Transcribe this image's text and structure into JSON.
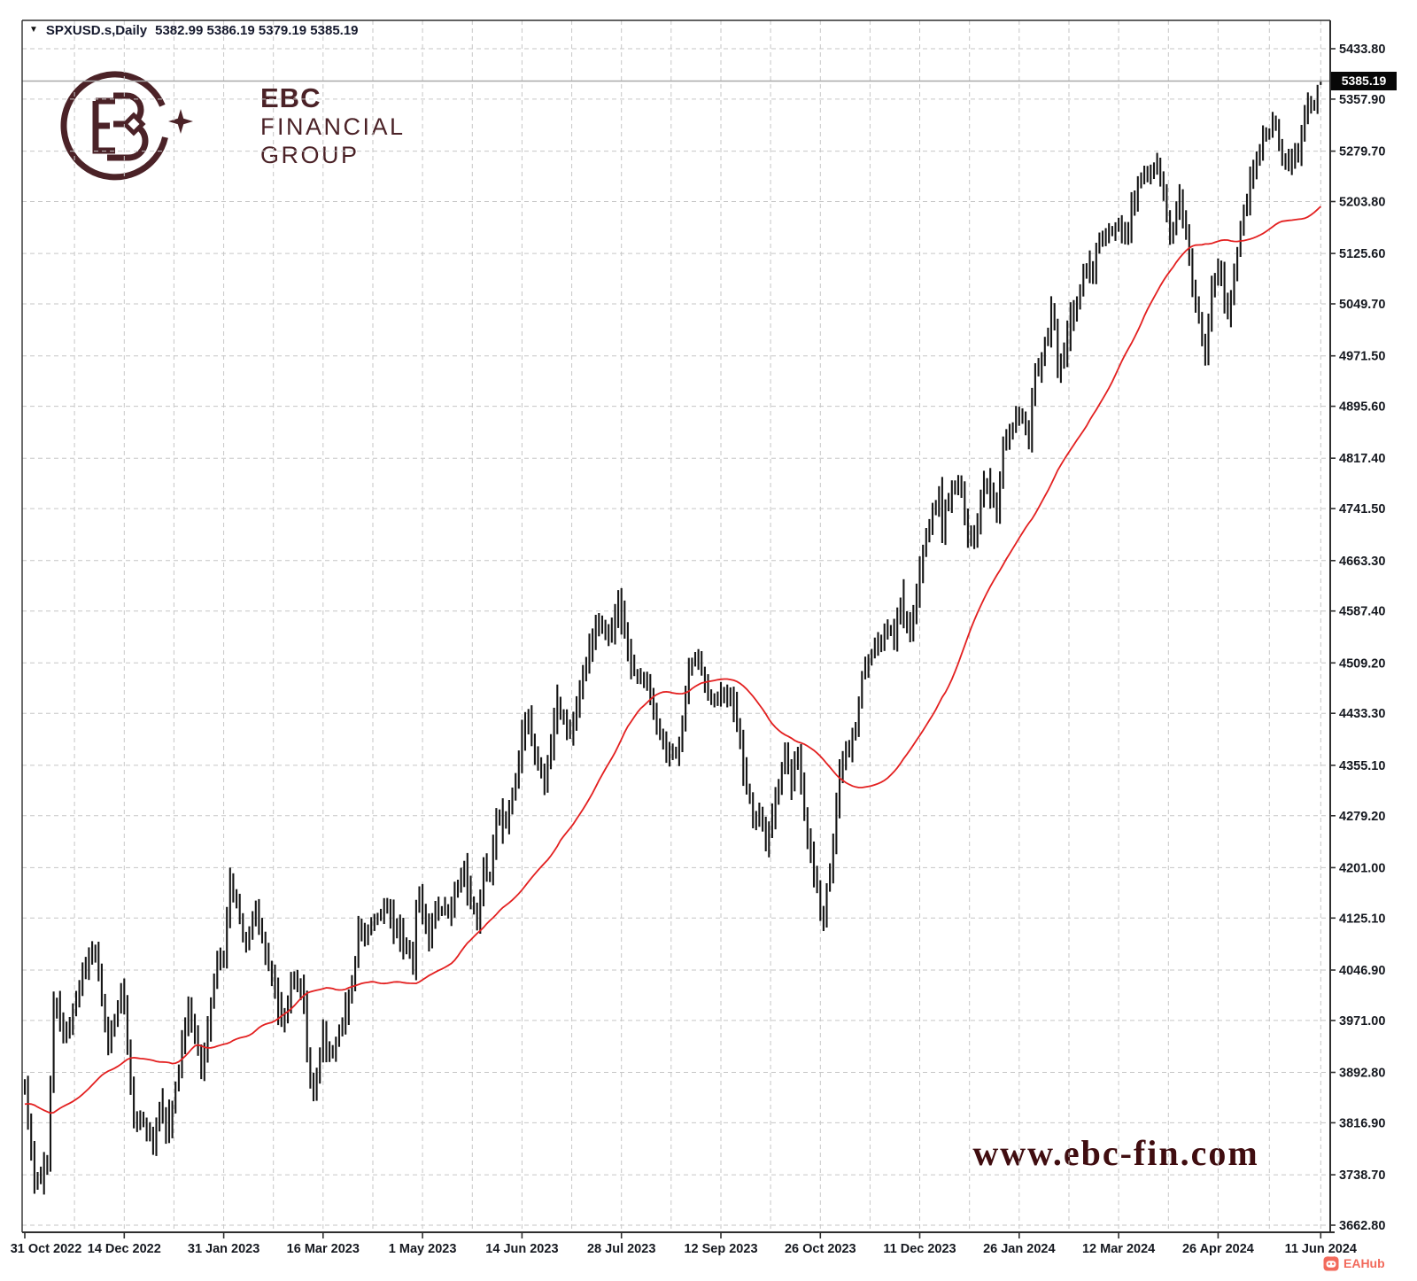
{
  "window": {
    "symbol_period": "SPXUSD.s,Daily",
    "ohlc_text": "5382.99 5386.19 5379.19 5385.19"
  },
  "logo": {
    "line1": "EBC",
    "line2": "FINANCIAL",
    "line3": "GROUP",
    "color": "#4b2227"
  },
  "watermark": {
    "text": "www.ebc-fin.com"
  },
  "eahub_badge": {
    "text": "EAHub",
    "color": "#f26a5c"
  },
  "chart_data": {
    "type": "bar",
    "subtype": "ohlc-daily-bars",
    "title": "SPXUSD.s Daily",
    "current_price": 5385.19,
    "current_price_label": "5385.19",
    "ohlc_title": {
      "open": 5382.99,
      "high": 5386.19,
      "low": 5379.19,
      "close": 5385.19
    },
    "ylim": [
      3662.8,
      5433.8
    ],
    "grid": true,
    "price_axis_ticks": [
      5433.8,
      5357.9,
      5279.7,
      5203.8,
      5125.6,
      5049.7,
      4971.5,
      4895.6,
      4817.4,
      4741.5,
      4663.3,
      4587.4,
      4509.2,
      4433.3,
      4355.1,
      4279.2,
      4201.0,
      4125.1,
      4046.9,
      3971.0,
      3892.8,
      3816.9,
      3738.7,
      3662.8
    ],
    "date_axis_ticks": [
      "31 Oct 2022",
      "14 Dec 2022",
      "31 Jan 2023",
      "16 Mar 2023",
      "1 May 2023",
      "14 Jun 2023",
      "28 Jul 2023",
      "12 Sep 2023",
      "26 Oct 2023",
      "11 Dec 2023",
      "26 Jan 2024",
      "12 Mar 2024",
      "26 Apr 2024",
      "11 Jun 2024"
    ],
    "date_tick_days": [
      0,
      31,
      62,
      93,
      124,
      155,
      186,
      217,
      248,
      279,
      310,
      341,
      372,
      404
    ],
    "total_days": 405,
    "close_anchors": [
      [
        0,
        3872
      ],
      [
        3,
        3720
      ],
      [
        7,
        3748
      ],
      [
        9,
        3993
      ],
      [
        13,
        3947
      ],
      [
        17,
        4027
      ],
      [
        21,
        4080
      ],
      [
        22,
        4077
      ],
      [
        26,
        3934
      ],
      [
        30,
        4020
      ],
      [
        31,
        3995
      ],
      [
        34,
        3818
      ],
      [
        37,
        3822
      ],
      [
        40,
        3783
      ],
      [
        42,
        3840
      ],
      [
        45,
        3808
      ],
      [
        51,
        3999
      ],
      [
        55,
        3898
      ],
      [
        60,
        4060
      ],
      [
        62,
        4070
      ],
      [
        64,
        4180
      ],
      [
        69,
        4082
      ],
      [
        72,
        4137
      ],
      [
        75,
        4079
      ],
      [
        80,
        3970
      ],
      [
        81,
        3970
      ],
      [
        84,
        4045
      ],
      [
        87,
        3992
      ],
      [
        88,
        3918
      ],
      [
        90,
        3856
      ],
      [
        93,
        3960
      ],
      [
        94,
        3917
      ],
      [
        97,
        3937
      ],
      [
        99,
        3971
      ],
      [
        102,
        4028
      ],
      [
        104,
        4109
      ],
      [
        106,
        4100
      ],
      [
        112,
        4146
      ],
      [
        120,
        4071
      ],
      [
        121,
        4055
      ],
      [
        122,
        4135
      ],
      [
        123,
        4169
      ],
      [
        126,
        4091
      ],
      [
        128,
        4136
      ],
      [
        132,
        4131
      ],
      [
        137,
        4198
      ],
      [
        141,
        4115
      ],
      [
        143,
        4205
      ],
      [
        145,
        4180
      ],
      [
        147,
        4282
      ],
      [
        150,
        4268
      ],
      [
        154,
        4369
      ],
      [
        156,
        4426
      ],
      [
        157,
        4410
      ],
      [
        161,
        4348
      ],
      [
        162,
        4329
      ],
      [
        166,
        4450
      ],
      [
        170,
        4399
      ],
      [
        173,
        4472
      ],
      [
        175,
        4505
      ],
      [
        178,
        4566
      ],
      [
        181,
        4555
      ],
      [
        183,
        4567
      ],
      [
        184,
        4590
      ],
      [
        185,
        4582
      ],
      [
        186,
        4589
      ],
      [
        189,
        4501
      ],
      [
        194,
        4469
      ],
      [
        198,
        4404
      ],
      [
        200,
        4370
      ],
      [
        204,
        4376
      ],
      [
        207,
        4498
      ],
      [
        209,
        4508
      ],
      [
        210,
        4516
      ],
      [
        214,
        4451
      ],
      [
        218,
        4467
      ],
      [
        220,
        4450
      ],
      [
        223,
        4402
      ],
      [
        225,
        4320
      ],
      [
        227,
        4274
      ],
      [
        229,
        4288
      ],
      [
        231,
        4229
      ],
      [
        234,
        4309
      ],
      [
        237,
        4377
      ],
      [
        239,
        4328
      ],
      [
        241,
        4373
      ],
      [
        243,
        4278
      ],
      [
        245,
        4217
      ],
      [
        248,
        4137
      ],
      [
        249,
        4117
      ],
      [
        250,
        4167
      ],
      [
        251,
        4194
      ],
      [
        252,
        4238
      ],
      [
        254,
        4358
      ],
      [
        257,
        4383
      ],
      [
        259,
        4415
      ],
      [
        261,
        4496
      ],
      [
        266,
        4538
      ],
      [
        268,
        4559
      ],
      [
        271,
        4550
      ],
      [
        272,
        4568
      ],
      [
        273,
        4595
      ],
      [
        276,
        4549
      ],
      [
        278,
        4604
      ],
      [
        281,
        4707
      ],
      [
        282,
        4719
      ],
      [
        285,
        4768
      ],
      [
        286,
        4698
      ],
      [
        287,
        4746
      ],
      [
        291,
        4783
      ],
      [
        292,
        4770
      ],
      [
        294,
        4705
      ],
      [
        296,
        4697
      ],
      [
        299,
        4783
      ],
      [
        303,
        4739
      ],
      [
        305,
        4840
      ],
      [
        308,
        4869
      ],
      [
        310,
        4891
      ],
      [
        313,
        4846
      ],
      [
        315,
        4959
      ],
      [
        316,
        4943
      ],
      [
        320,
        5027
      ],
      [
        321,
        5022
      ],
      [
        322,
        4953
      ],
      [
        330,
        5089
      ],
      [
        333,
        5096
      ],
      [
        334,
        5137
      ],
      [
        338,
        5157
      ],
      [
        341,
        5175
      ],
      [
        343,
        5150
      ],
      [
        347,
        5225
      ],
      [
        348,
        5242
      ],
      [
        353,
        5254
      ],
      [
        354,
        5244
      ],
      [
        357,
        5147
      ],
      [
        360,
        5210
      ],
      [
        363,
        5123
      ],
      [
        364,
        5062
      ],
      [
        366,
        5022
      ],
      [
        368,
        4967
      ],
      [
        370,
        5071
      ],
      [
        372,
        5100
      ],
      [
        375,
        5036
      ],
      [
        378,
        5128
      ],
      [
        380,
        5188
      ],
      [
        386,
        5308
      ],
      [
        390,
        5321
      ],
      [
        392,
        5268
      ],
      [
        395,
        5266
      ],
      [
        397,
        5277
      ],
      [
        400,
        5354
      ],
      [
        402,
        5347
      ],
      [
        403,
        5361
      ],
      [
        404,
        5385
      ]
    ],
    "ma": {
      "period": 45,
      "color": "#e32020",
      "pad_value": 3845
    },
    "colors": {
      "bar": "#151515",
      "grid": "#c6c6c6",
      "axis": "#2e2e2e",
      "current_price_line": "#a9a9a9",
      "label_text": "#15181f"
    }
  }
}
